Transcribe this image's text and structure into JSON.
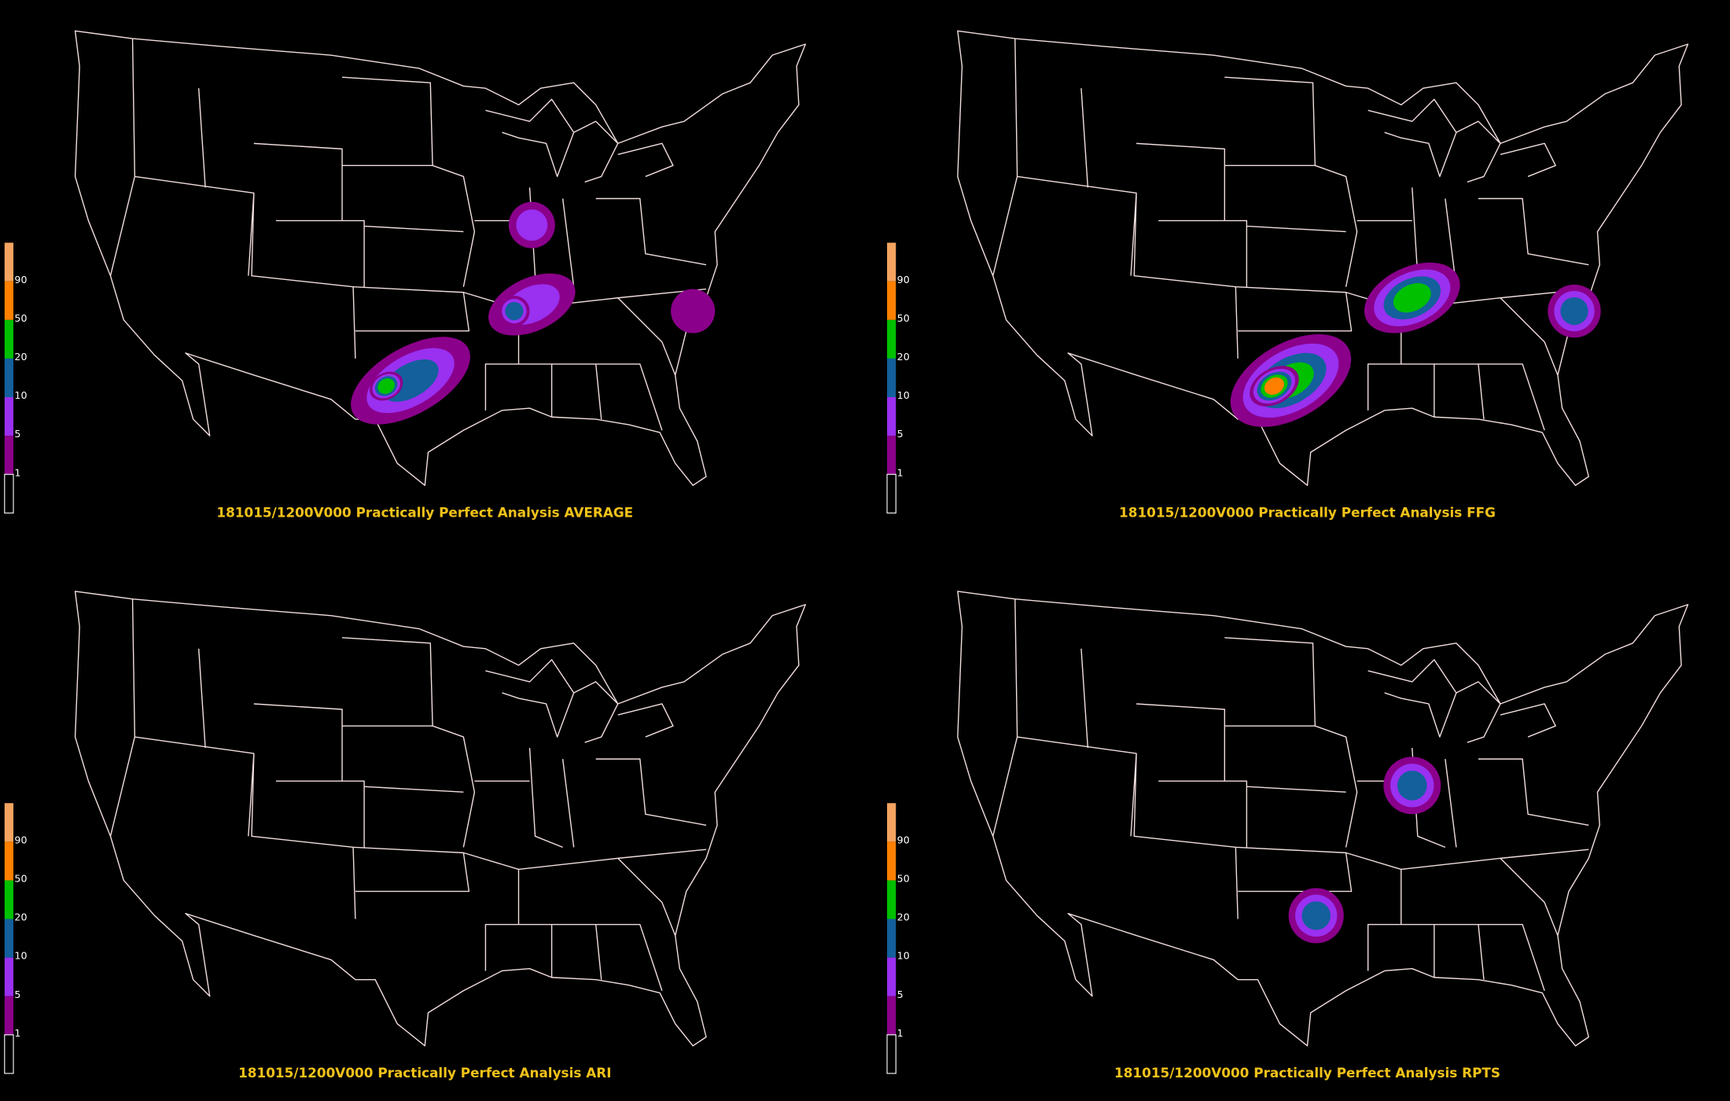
{
  "panels": [
    {
      "title": "181015/1200V000 Practically Perfect Analysis AVERAGE",
      "colorbar": [
        "90",
        "50",
        "20",
        "10",
        "5",
        "1"
      ]
    },
    {
      "title": "181015/1200V000 Practically Perfect Analysis FFG",
      "colorbar": [
        "90",
        "50",
        "20",
        "10",
        "5",
        "1"
      ]
    },
    {
      "title": "181015/1200V000 Practically Perfect Analysis ARI",
      "colorbar": [
        "90",
        "50",
        "20",
        "10",
        "5",
        "1"
      ]
    },
    {
      "title": "181015/1200V000 Practically Perfect Analysis RPTS",
      "colorbar": [
        "90",
        "50",
        "20",
        "10",
        "5",
        "1"
      ]
    }
  ]
}
